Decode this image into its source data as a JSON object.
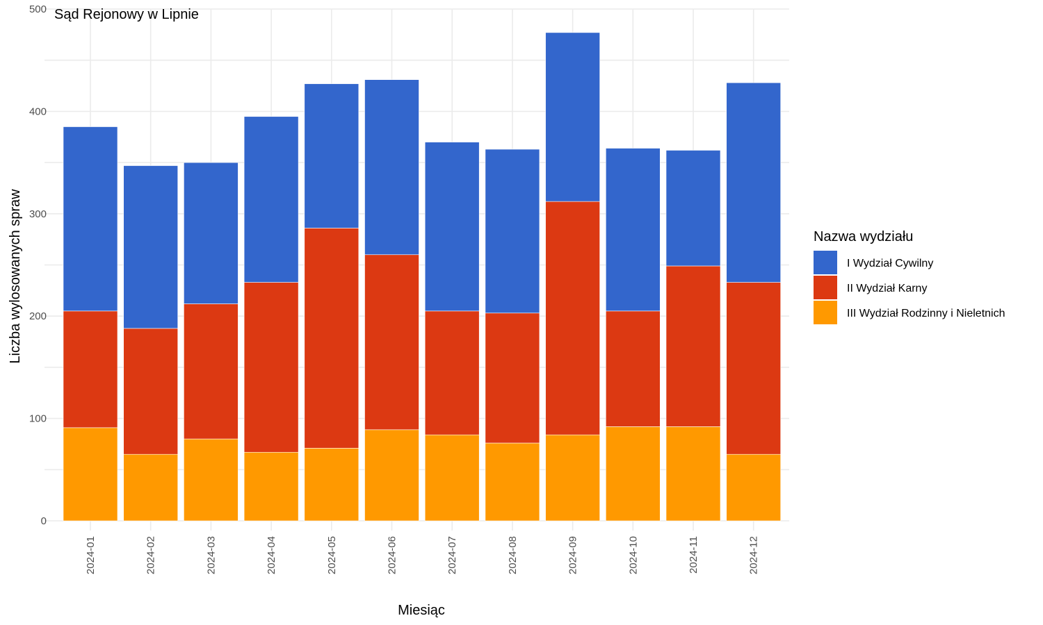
{
  "chart_data": {
    "type": "bar",
    "stacked": true,
    "title": "Sąd Rejonowy w Lipnie",
    "xlabel": "Miesiąc",
    "ylabel": "Liczba wylosowanych spraw",
    "ylim": [
      0,
      500
    ],
    "yticks": [
      0,
      100,
      200,
      300,
      400,
      500
    ],
    "grid": true,
    "legend_title": "Nazwa wydziału",
    "legend_position": "right",
    "categories": [
      "2024-01",
      "2024-02",
      "2024-03",
      "2024-04",
      "2024-05",
      "2024-06",
      "2024-07",
      "2024-08",
      "2024-09",
      "2024-10",
      "2024-11",
      "2024-12"
    ],
    "series": [
      {
        "name": "I Wydział Cywilny",
        "color": "#3366cc",
        "values": [
          180,
          159,
          138,
          162,
          141,
          171,
          165,
          160,
          165,
          159,
          113,
          195
        ]
      },
      {
        "name": "II Wydział Karny",
        "color": "#dc3912",
        "values": [
          114,
          123,
          132,
          166,
          215,
          171,
          121,
          127,
          228,
          113,
          157,
          168
        ]
      },
      {
        "name": "III Wydział Rodzinny i Nieletnich",
        "color": "#ff9900",
        "values": [
          91,
          65,
          80,
          67,
          71,
          89,
          84,
          76,
          84,
          92,
          92,
          65
        ]
      }
    ]
  }
}
